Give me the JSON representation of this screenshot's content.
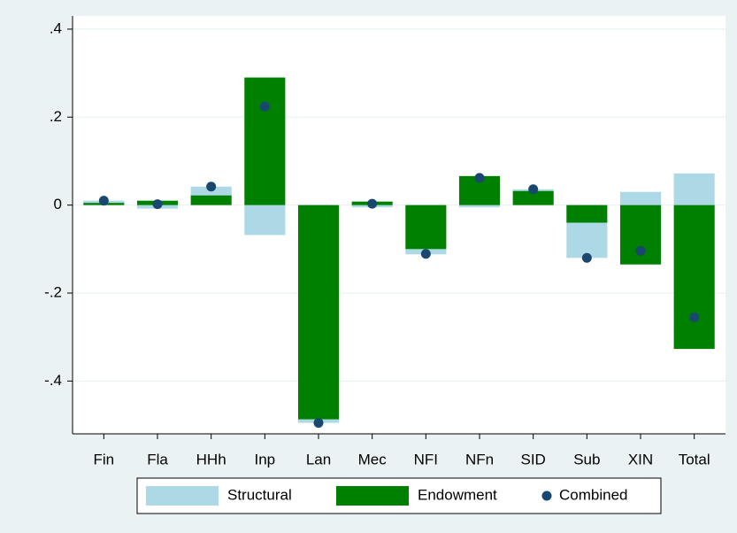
{
  "chart_data": {
    "type": "bar",
    "categories": [
      "Fin",
      "Fla",
      "HHh",
      "Inp",
      "Lan",
      "Mec",
      "NFI",
      "NFn",
      "SID",
      "Sub",
      "XIN",
      "Total"
    ],
    "series": [
      {
        "name": "Structural",
        "color": "#add8e6",
        "values": [
          0.005,
          -0.008,
          0.02,
          -0.068,
          -0.008,
          -0.005,
          -0.012,
          -0.005,
          0.004,
          -0.08,
          0.03,
          0.072
        ]
      },
      {
        "name": "Endowment",
        "color": "#008000",
        "values": [
          0.005,
          0.01,
          0.022,
          0.29,
          -0.487,
          0.008,
          -0.1,
          0.066,
          0.032,
          -0.04,
          -0.135,
          -0.327
        ]
      },
      {
        "name": "Combined",
        "color": "#1a476f",
        "values": [
          0.01,
          0.002,
          0.042,
          0.224,
          -0.495,
          0.003,
          -0.111,
          0.062,
          0.036,
          -0.12,
          -0.104,
          -0.255
        ]
      }
    ],
    "ylim": [
      -0.52,
      0.43
    ],
    "yticks": [
      {
        "value": -0.4,
        "label": "-.4"
      },
      {
        "value": -0.2,
        "label": "-.2"
      },
      0,
      {
        "value": 0.2,
        "label": ".2"
      },
      {
        "value": 0.4,
        "label": ".4"
      }
    ],
    "grid": true
  }
}
